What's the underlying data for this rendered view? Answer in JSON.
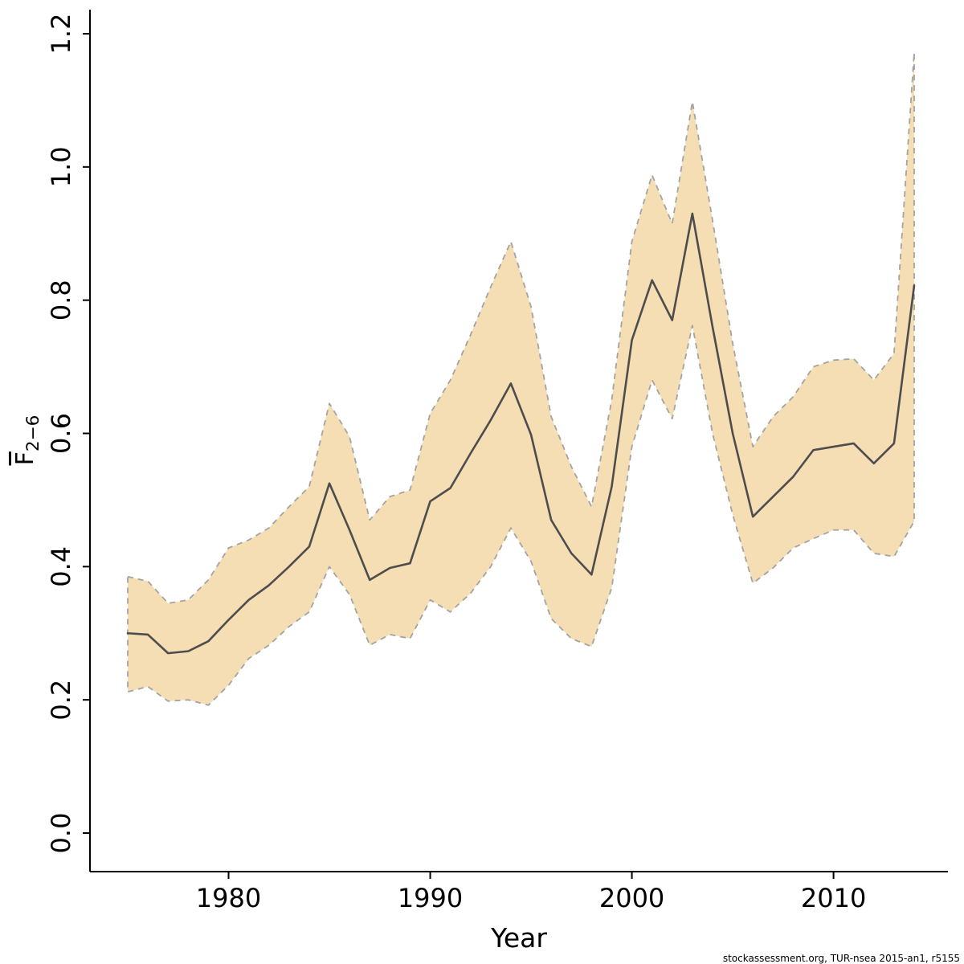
{
  "footer": {
    "credit": "stockassessment.org, TUR-nsea  2015-an1, r5155"
  },
  "chart_data": {
    "type": "line",
    "title": "",
    "xlabel": "Year",
    "ylabel_main": "F",
    "ylabel_sub": "2−6",
    "xlim": [
      1975,
      2014
    ],
    "ylim": [
      0,
      1.2
    ],
    "x_ticks": [
      1980,
      1990,
      2000,
      2010
    ],
    "y_ticks": [
      "0.0",
      "0.2",
      "0.4",
      "0.6",
      "0.8",
      "1.0",
      "1.2"
    ],
    "grid": false,
    "legend": "none",
    "x": [
      1975,
      1976,
      1977,
      1978,
      1979,
      1980,
      1981,
      1982,
      1983,
      1984,
      1985,
      1986,
      1987,
      1988,
      1989,
      1990,
      1991,
      1992,
      1993,
      1994,
      1995,
      1996,
      1997,
      1998,
      1999,
      2000,
      2001,
      2002,
      2003,
      2004,
      2005,
      2006,
      2007,
      2008,
      2009,
      2010,
      2011,
      2012,
      2013,
      2014
    ],
    "series": [
      {
        "name": "Fbar estimate",
        "values": [
          0.3,
          0.298,
          0.27,
          0.273,
          0.288,
          0.32,
          0.35,
          0.372,
          0.4,
          0.43,
          0.525,
          0.455,
          0.38,
          0.398,
          0.405,
          0.498,
          0.518,
          0.57,
          0.62,
          0.675,
          0.598,
          0.47,
          0.42,
          0.388,
          0.52,
          0.74,
          0.83,
          0.77,
          0.93,
          0.76,
          0.6,
          0.475,
          0.505,
          0.535,
          0.575,
          0.58,
          0.585,
          0.555,
          0.585,
          0.822
        ]
      },
      {
        "name": "upper confidence bound",
        "values": [
          0.385,
          0.378,
          0.345,
          0.35,
          0.38,
          0.428,
          0.44,
          0.458,
          0.49,
          0.52,
          0.645,
          0.595,
          0.47,
          0.505,
          0.515,
          0.63,
          0.68,
          0.748,
          0.82,
          0.888,
          0.79,
          0.625,
          0.55,
          0.49,
          0.65,
          0.888,
          0.988,
          0.915,
          1.098,
          0.92,
          0.735,
          0.58,
          0.625,
          0.655,
          0.7,
          0.71,
          0.712,
          0.68,
          0.72,
          1.172
        ]
      },
      {
        "name": "lower confidence bound",
        "values": [
          0.212,
          0.22,
          0.198,
          0.2,
          0.192,
          0.222,
          0.262,
          0.282,
          0.31,
          0.332,
          0.4,
          0.358,
          0.282,
          0.298,
          0.292,
          0.35,
          0.332,
          0.36,
          0.4,
          0.458,
          0.408,
          0.322,
          0.292,
          0.28,
          0.368,
          0.58,
          0.68,
          0.622,
          0.762,
          0.6,
          0.478,
          0.375,
          0.398,
          0.428,
          0.442,
          0.455,
          0.455,
          0.42,
          0.415,
          0.468
        ]
      }
    ],
    "colors": {
      "band_fill": "#f5deb3",
      "band_border": "#a3a3a3",
      "line": "#4d4d4d",
      "axis": "#000000"
    }
  }
}
